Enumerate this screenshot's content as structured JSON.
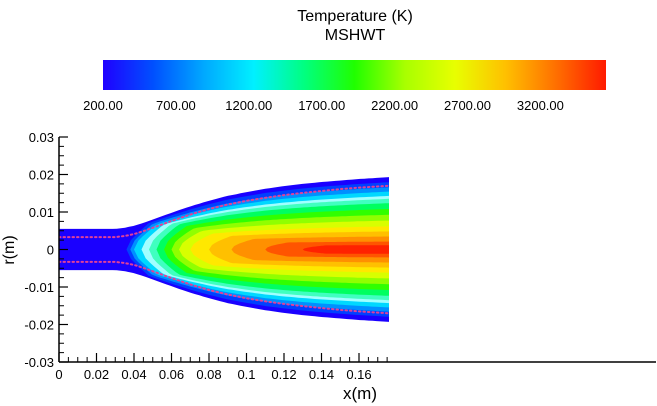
{
  "chart_data": {
    "type": "heatmap",
    "title": "Temperature (K)",
    "subtitle": "MSHWT",
    "colorbar": {
      "ticks": [
        "200.00",
        "700.00",
        "1200.00",
        "1700.00",
        "2200.00",
        "2700.00",
        "3200.00"
      ],
      "range": [
        200,
        3650
      ],
      "colors": [
        "#1f00ff",
        "#0050ff",
        "#00a8ff",
        "#00f0ff",
        "#00ff80",
        "#20ff00",
        "#a8ff00",
        "#e8ff00",
        "#ffc000",
        "#ff7000",
        "#ff1a00"
      ]
    },
    "xlabel": "x(m)",
    "ylabel": "r(m)",
    "xlim": [
      0,
      0.176
    ],
    "ylim": [
      -0.03,
      0.03
    ],
    "xticks": [
      "0",
      "0.02",
      "0.04",
      "0.06",
      "0.08",
      "0.1",
      "0.12",
      "0.14",
      "0.16"
    ],
    "yticks": [
      "0.03",
      "0.02",
      "0.01",
      "0",
      "-0.01",
      "-0.02",
      "-0.03"
    ],
    "outer_boundary": {
      "x": [
        0,
        0.03,
        0.035,
        0.04,
        0.045,
        0.05,
        0.06,
        0.07,
        0.08,
        0.09,
        0.1,
        0.11,
        0.12,
        0.13,
        0.14,
        0.15,
        0.16,
        0.176
      ],
      "r": [
        0.0055,
        0.0055,
        0.0058,
        0.0063,
        0.0071,
        0.008,
        0.0098,
        0.0115,
        0.013,
        0.0143,
        0.0153,
        0.0162,
        0.0169,
        0.0175,
        0.018,
        0.0184,
        0.0188,
        0.0193
      ]
    },
    "dotted_contour": {
      "color": "#e0409a",
      "x": [
        0,
        0.03,
        0.035,
        0.04,
        0.045,
        0.05,
        0.06,
        0.07,
        0.08,
        0.09,
        0.1,
        0.11,
        0.12,
        0.13,
        0.14,
        0.15,
        0.16,
        0.176
      ],
      "r": [
        0.0033,
        0.0033,
        0.0036,
        0.0041,
        0.0049,
        0.0058,
        0.0076,
        0.0093,
        0.0108,
        0.012,
        0.013,
        0.0138,
        0.0145,
        0.0151,
        0.0156,
        0.0161,
        0.0165,
        0.017
      ]
    }
  }
}
